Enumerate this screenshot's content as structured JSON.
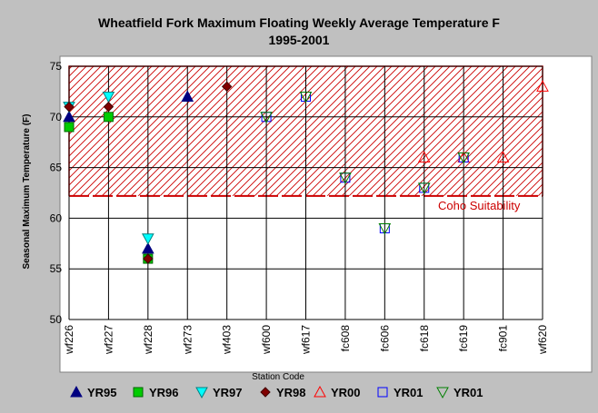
{
  "chart_data": {
    "type": "scatter",
    "title": "Wheatfield Fork Maximum Floating Weekly Average Temperature F",
    "subtitle": "1995-2001",
    "xlabel": "Station Code",
    "ylabel": "Seasonal Maximum Temperature (F)",
    "categories": [
      "wf226",
      "wf227",
      "wf228",
      "wf273",
      "wf403",
      "wf600",
      "wf617",
      "fc608",
      "fc606",
      "fc618",
      "fc619",
      "fc901",
      "wf620"
    ],
    "ylim": [
      50,
      75
    ],
    "yticks": [
      50,
      55,
      60,
      65,
      70,
      75
    ],
    "grid": true,
    "legend_position": "bottom",
    "band": {
      "label": "Coho Suitability",
      "from": 62.2,
      "to": 75,
      "color": "#cc0000"
    },
    "series": [
      {
        "name": "YR95",
        "marker": "triangle-up",
        "fill": "#000080",
        "stroke": "#000080",
        "points": [
          {
            "x": "wf226",
            "y": 70
          },
          {
            "x": "wf228",
            "y": 57
          },
          {
            "x": "wf273",
            "y": 72
          }
        ]
      },
      {
        "name": "YR96",
        "marker": "square",
        "fill": "#00cc00",
        "stroke": "#006600",
        "points": [
          {
            "x": "wf226",
            "y": 69
          },
          {
            "x": "wf227",
            "y": 70
          },
          {
            "x": "wf228",
            "y": 56
          }
        ]
      },
      {
        "name": "YR97",
        "marker": "triangle-down",
        "fill": "#00ffff",
        "stroke": "#008080",
        "points": [
          {
            "x": "wf226",
            "y": 71
          },
          {
            "x": "wf227",
            "y": 72
          },
          {
            "x": "wf228",
            "y": 58
          }
        ]
      },
      {
        "name": "YR98",
        "marker": "diamond",
        "fill": "#800000",
        "stroke": "#400000",
        "points": [
          {
            "x": "wf226",
            "y": 71
          },
          {
            "x": "wf227",
            "y": 71
          },
          {
            "x": "wf228",
            "y": 56
          },
          {
            "x": "wf403",
            "y": 73
          }
        ]
      },
      {
        "name": "YR00",
        "marker": "triangle-up-open",
        "fill": "none",
        "stroke": "#ff0000",
        "points": [
          {
            "x": "fc618",
            "y": 66
          },
          {
            "x": "fc619",
            "y": 66
          },
          {
            "x": "fc901",
            "y": 66
          },
          {
            "x": "wf620",
            "y": 73
          }
        ]
      },
      {
        "name": "YR01",
        "marker": "square-open",
        "fill": "none",
        "stroke": "#0000ff",
        "points": [
          {
            "x": "wf600",
            "y": 70
          },
          {
            "x": "wf617",
            "y": 72
          },
          {
            "x": "fc608",
            "y": 64
          },
          {
            "x": "fc606",
            "y": 59
          },
          {
            "x": "fc618",
            "y": 63
          },
          {
            "x": "fc619",
            "y": 66
          }
        ]
      },
      {
        "name": "YR01",
        "marker": "triangle-down-open",
        "fill": "none",
        "stroke": "#008000",
        "points": [
          {
            "x": "wf600",
            "y": 70
          },
          {
            "x": "wf617",
            "y": 72
          },
          {
            "x": "fc608",
            "y": 64
          },
          {
            "x": "fc606",
            "y": 59
          },
          {
            "x": "fc618",
            "y": 63
          },
          {
            "x": "fc619",
            "y": 66
          }
        ]
      }
    ]
  }
}
